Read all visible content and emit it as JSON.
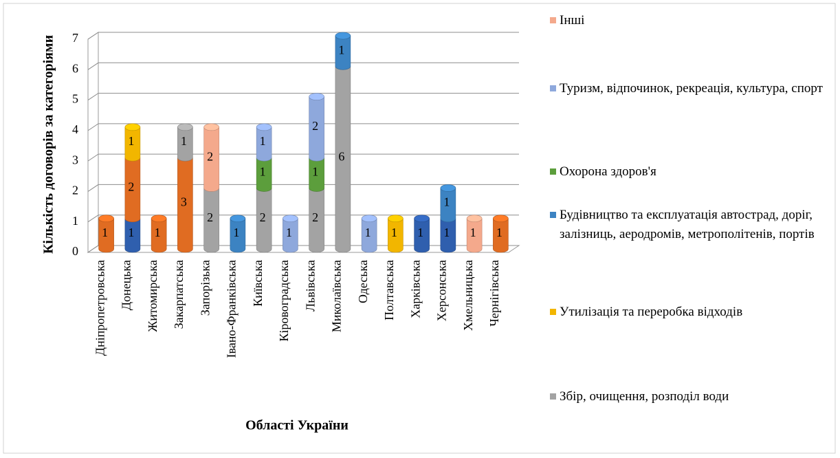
{
  "chart_data": {
    "type": "stacked_bar_3d",
    "ylabel": "Кількість договорів за категоріями",
    "xlabel": "Області України",
    "categories": [
      "Дніпропетровська",
      "Донецька",
      "Житомирська",
      "Закарпатська",
      "Запорізька",
      "Івано-Франківська",
      "Київська",
      "Кіровоградська",
      "Львівська",
      "Миколаївська",
      "Одеська",
      "Полтавська",
      "Харківська",
      "Херсонська",
      "Хмельницька",
      "Чернігівська"
    ],
    "ylim": [
      0,
      7
    ],
    "yticks": [
      0,
      1,
      2,
      3,
      4,
      5,
      6,
      7
    ],
    "grid": true,
    "series": [
      {
        "color": "#2f5fae",
        "values": [
          null,
          1,
          null,
          null,
          null,
          null,
          null,
          null,
          null,
          null,
          null,
          null,
          1,
          1,
          null,
          null
        ]
      },
      {
        "color": "#e06c22",
        "values": [
          1,
          2,
          1,
          3,
          null,
          null,
          null,
          null,
          null,
          null,
          null,
          null,
          null,
          null,
          null,
          1
        ]
      },
      {
        "name": "Збір, очищення, розподіл води",
        "color": "#a3a3a3",
        "values": [
          null,
          null,
          null,
          1,
          2,
          null,
          2,
          null,
          2,
          6,
          null,
          null,
          null,
          null,
          null,
          null
        ]
      },
      {
        "name": "Утилізація та переробка відходів",
        "color": "#f2b600",
        "values": [
          null,
          1,
          null,
          null,
          null,
          null,
          null,
          null,
          null,
          null,
          null,
          1,
          null,
          null,
          null,
          null
        ]
      },
      {
        "name": "Будівництво та експлуатація автострад, доріг, залізниць, аеродромів, метрополітенів, портів",
        "color": "#3c83c2",
        "values": [
          null,
          null,
          null,
          null,
          null,
          1,
          null,
          null,
          null,
          1,
          null,
          null,
          null,
          1,
          null,
          null
        ]
      },
      {
        "name": "Охорона здоров'я",
        "color": "#5c9e3c",
        "values": [
          null,
          null,
          null,
          null,
          null,
          null,
          1,
          null,
          1,
          null,
          null,
          null,
          null,
          null,
          null,
          null
        ]
      },
      {
        "name": "Туризм,  відпочинок, рекреація, культура,  спорт",
        "color": "#8ea8dc",
        "values": [
          null,
          null,
          null,
          null,
          null,
          null,
          1,
          1,
          2,
          null,
          1,
          null,
          null,
          null,
          null,
          null
        ]
      },
      {
        "name": "Інші",
        "color": "#f4a98c",
        "values": [
          null,
          null,
          null,
          null,
          2,
          null,
          null,
          null,
          null,
          null,
          null,
          null,
          null,
          null,
          1,
          null
        ]
      }
    ]
  }
}
